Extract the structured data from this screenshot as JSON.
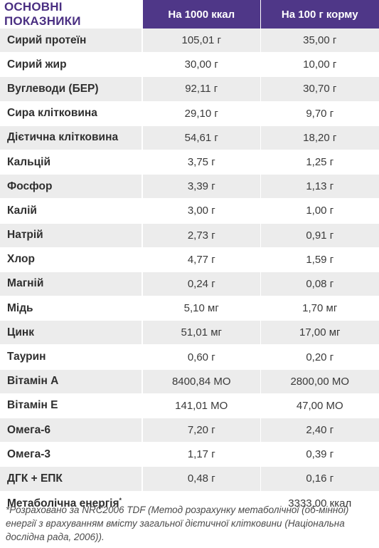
{
  "header": {
    "title": "ОСНОВНІ ПОКАЗНИКИ",
    "col1": "На 1000 ккал",
    "col2": "На 100  г корму"
  },
  "rows": [
    {
      "name": "Сирий протеїн",
      "v1": "105,01 г",
      "v2": "35,00 г"
    },
    {
      "name": "Сирий жир",
      "v1": "30,00 г",
      "v2": "10,00 г"
    },
    {
      "name": "Вуглеводи (БЕР)",
      "v1": "92,11 г",
      "v2": "30,70 г"
    },
    {
      "name": "Сира клітковина",
      "v1": "29,10 г",
      "v2": "9,70 г"
    },
    {
      "name": "Дієтична клітковина",
      "v1": "54,61 г",
      "v2": "18,20 г"
    },
    {
      "name": "Кальцій",
      "v1": "3,75 г",
      "v2": "1,25 г"
    },
    {
      "name": "Фосфор",
      "v1": "3,39 г",
      "v2": "1,13 г"
    },
    {
      "name": "Калій",
      "v1": "3,00 г",
      "v2": "1,00 г"
    },
    {
      "name": "Натрій",
      "v1": "2,73 г",
      "v2": "0,91 г"
    },
    {
      "name": "Хлор",
      "v1": "4,77 г",
      "v2": "1,59 г"
    },
    {
      "name": "Магній",
      "v1": "0,24 г",
      "v2": "0,08 г"
    },
    {
      "name": "Мідь",
      "v1": "5,10 мг",
      "v2": "1,70 мг"
    },
    {
      "name": "Цинк",
      "v1": "51,01 мг",
      "v2": "17,00 мг"
    },
    {
      "name": "Таурин",
      "v1": "0,60 г",
      "v2": "0,20 г"
    },
    {
      "name": "Вітамін А",
      "v1": "8400,84 МО",
      "v2": "2800,00 МО"
    },
    {
      "name": "Вітамін Е",
      "v1": "141,01 МО",
      "v2": "47,00 МО"
    },
    {
      "name": "Омега-6",
      "v1": "7,20 г",
      "v2": "2,40 г"
    },
    {
      "name": "Омега-3",
      "v1": "1,17 г",
      "v2": "0,39 г"
    },
    {
      "name": "ДГК + ЕПК",
      "v1": "0,48 г",
      "v2": "0,16 г"
    },
    {
      "name": "Метаболічна енергія",
      "name_mark": "*",
      "v1": "",
      "v2": "3333,00 ккал"
    }
  ],
  "footnote": "*Розраховано за NRC2006 TDF (Метод розрахунку метаболічної (об-мінної) енергії з врахуванням вмісту загальної дієтичної клітковини (Національна дослідна рада, 2006))."
}
